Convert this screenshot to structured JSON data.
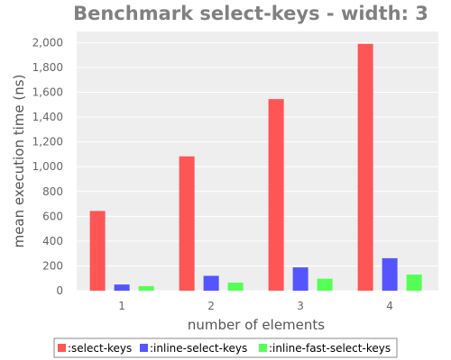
{
  "chart_data": {
    "type": "bar",
    "title": "Benchmark select-keys - width: 3",
    "xlabel": "number of elements",
    "ylabel": "mean execution time (ns)",
    "categories": [
      "1",
      "2",
      "3",
      "4"
    ],
    "ylim": [
      0,
      2100
    ],
    "yticks": [
      0,
      200,
      400,
      600,
      800,
      1000,
      1200,
      1400,
      1600,
      1800,
      2000
    ],
    "ytick_labels": [
      "0",
      "200",
      "400",
      "600",
      "800",
      "1,000",
      "1,200",
      "1,400",
      "1,600",
      "1,800",
      "2,000"
    ],
    "grid": true,
    "legend_position": "bottom",
    "series": [
      {
        "name": ":select-keys",
        "color": "#ff5555",
        "values": [
          643,
          1083,
          1545,
          1990
        ]
      },
      {
        "name": ":inline-select-keys",
        "color": "#5555ff",
        "values": [
          50,
          120,
          188,
          262
        ]
      },
      {
        "name": ":inline-fast-select-keys",
        "color": "#55ff55",
        "values": [
          37,
          65,
          97,
          130
        ]
      }
    ]
  }
}
